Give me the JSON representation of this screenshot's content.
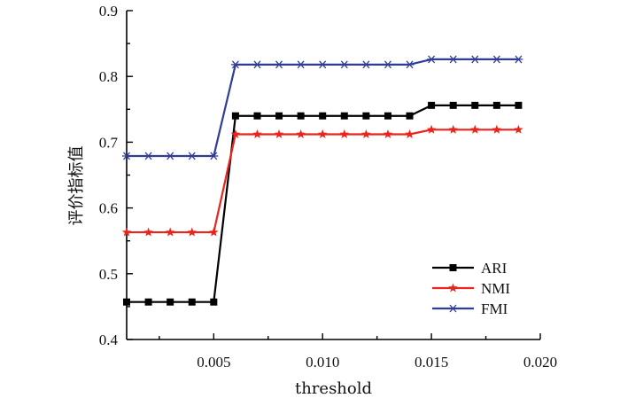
{
  "chart_data": {
    "type": "line",
    "title": "",
    "xlabel": "threshold",
    "ylabel": "评价指标值",
    "xlim": [
      0.001,
      0.02
    ],
    "ylim": [
      0.4,
      0.9
    ],
    "x_ticks": [
      0.005,
      0.01,
      0.015,
      0.02
    ],
    "x_tick_labels": [
      "0.005",
      "0.010",
      "0.015",
      "0.020"
    ],
    "y_ticks": [
      0.4,
      0.5,
      0.6,
      0.7,
      0.8,
      0.9
    ],
    "y_tick_labels": [
      "0.4",
      "0.5",
      "0.6",
      "0.7",
      "0.8",
      "0.9"
    ],
    "grid": false,
    "legend_position": "bottom-right",
    "x": [
      0.001,
      0.002,
      0.003,
      0.004,
      0.005,
      0.006,
      0.007,
      0.008,
      0.009,
      0.01,
      0.011,
      0.012,
      0.013,
      0.014,
      0.015,
      0.016,
      0.017,
      0.018,
      0.019
    ],
    "series": [
      {
        "name": "ARI",
        "color": "#000000",
        "marker": "square",
        "values": [
          0.457,
          0.457,
          0.457,
          0.457,
          0.457,
          0.74,
          0.74,
          0.74,
          0.74,
          0.74,
          0.74,
          0.74,
          0.74,
          0.74,
          0.756,
          0.756,
          0.756,
          0.756,
          0.756
        ]
      },
      {
        "name": "NMI",
        "color": "#e8241c",
        "marker": "star",
        "values": [
          0.563,
          0.563,
          0.563,
          0.563,
          0.563,
          0.712,
          0.712,
          0.712,
          0.712,
          0.712,
          0.712,
          0.712,
          0.712,
          0.712,
          0.719,
          0.719,
          0.719,
          0.719,
          0.719
        ]
      },
      {
        "name": "FMI",
        "color": "#2f3d96",
        "marker": "asterisk",
        "values": [
          0.679,
          0.679,
          0.679,
          0.679,
          0.679,
          0.818,
          0.818,
          0.818,
          0.818,
          0.818,
          0.818,
          0.818,
          0.818,
          0.818,
          0.826,
          0.826,
          0.826,
          0.826,
          0.826
        ]
      }
    ]
  }
}
